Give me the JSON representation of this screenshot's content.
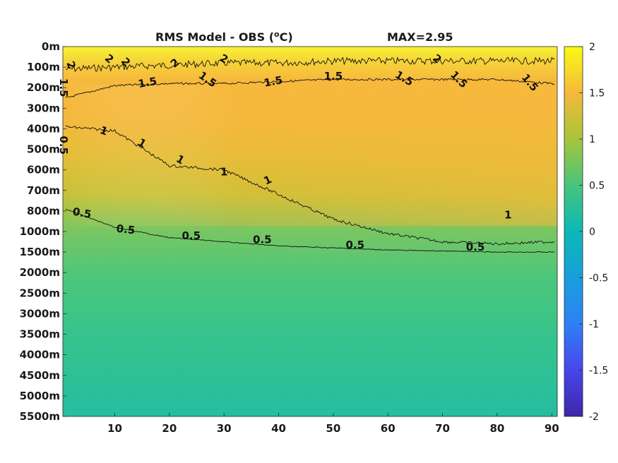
{
  "chart_data": {
    "type": "heatmap",
    "title_main": "RMS Model - OBS (",
    "title_sup": "o",
    "title_end": "C)",
    "max_label": "MAX=2.95",
    "x_ticks": [
      "10",
      "20",
      "30",
      "40",
      "50",
      "60",
      "70",
      "80",
      "90"
    ],
    "x_tick_values": [
      10,
      20,
      30,
      40,
      50,
      60,
      70,
      80,
      90
    ],
    "xlim": [
      0.5,
      91
    ],
    "y_ticks": [
      "0m",
      "100m",
      "200m",
      "300m",
      "400m",
      "500m",
      "600m",
      "700m",
      "800m",
      "1000m",
      "1500m",
      "2000m",
      "2500m",
      "3000m",
      "3500m",
      "4000m",
      "4500m",
      "5000m",
      "5500m"
    ],
    "colorbar_ticks": [
      "2",
      "1.5",
      "1",
      "0.5",
      "0",
      "-0.5",
      "-1",
      "-1.5",
      "-2"
    ],
    "colorbar_values": [
      2,
      1.5,
      1,
      0.5,
      0,
      -0.5,
      -1,
      -1.5,
      -2
    ],
    "clim": [
      -2,
      2
    ],
    "colormap": "parula",
    "contour_levels": [
      0.5,
      1,
      1.5,
      2
    ],
    "contours": [
      {
        "level": 2,
        "depth_index": [
          1.1,
          1.0,
          0.9,
          0.8,
          0.8,
          0.7,
          0.7,
          0.7,
          0.7,
          0.7
        ]
      },
      {
        "level": 1.5,
        "depth_index": [
          2.5,
          1.9,
          1.8,
          1.8,
          1.7,
          1.6,
          1.6,
          1.6,
          1.6,
          1.8
        ]
      },
      {
        "level": 1,
        "depth_index": [
          3.9,
          4.1,
          5.8,
          6.0,
          7.2,
          8.4,
          9.1,
          9.5,
          9.6,
          9.5
        ]
      },
      {
        "level": 0.5,
        "depth_index": [
          7.9,
          8.8,
          9.3,
          9.5,
          9.7,
          9.8,
          9.9,
          9.95,
          10.0,
          10.0
        ]
      }
    ],
    "contour_x": [
      1,
      10,
      20,
      30,
      40,
      50,
      60,
      70,
      80,
      90
    ],
    "contour_labels": [
      {
        "text": "0.5",
        "x": 4,
        "d": 8.1,
        "rot": 10
      },
      {
        "text": "0.5",
        "x": 12,
        "d": 8.9,
        "rot": 6
      },
      {
        "text": "0.5",
        "x": 24,
        "d": 9.2,
        "rot": 0
      },
      {
        "text": "0.5",
        "x": 37,
        "d": 9.4,
        "rot": 0
      },
      {
        "text": "0.5",
        "x": 54,
        "d": 9.65,
        "rot": 0
      },
      {
        "text": "0.5",
        "x": 76,
        "d": 9.75,
        "rot": 0
      },
      {
        "text": "1",
        "x": 8,
        "d": 4.1,
        "rot": 20
      },
      {
        "text": "1",
        "x": 15,
        "d": 4.7,
        "rot": 30
      },
      {
        "text": "1",
        "x": 22,
        "d": 5.5,
        "rot": 30
      },
      {
        "text": "1",
        "x": 30,
        "d": 6.1,
        "rot": 0
      },
      {
        "text": "1",
        "x": 38,
        "d": 6.5,
        "rot": -25
      },
      {
        "text": "1",
        "x": 82,
        "d": 8.2,
        "rot": 0
      },
      {
        "text": "1.5",
        "x": 16,
        "d": 1.75,
        "rot": -10
      },
      {
        "text": "1.5",
        "x": 27,
        "d": 1.6,
        "rot": 35
      },
      {
        "text": "1.5",
        "x": 39,
        "d": 1.7,
        "rot": -10
      },
      {
        "text": "1.5",
        "x": 50,
        "d": 1.45,
        "rot": 0
      },
      {
        "text": "1.5",
        "x": 63,
        "d": 1.55,
        "rot": 30
      },
      {
        "text": "1.5",
        "x": 73,
        "d": 1.6,
        "rot": 45
      },
      {
        "text": "1.5",
        "x": 86,
        "d": 1.75,
        "rot": 50
      },
      {
        "text": "2",
        "x": 2,
        "d": 0.9,
        "rot": 70
      },
      {
        "text": "2",
        "x": 9,
        "d": 0.6,
        "rot": 40
      },
      {
        "text": "2",
        "x": 12,
        "d": 0.75,
        "rot": 50
      },
      {
        "text": "2",
        "x": 21,
        "d": 0.8,
        "rot": -40
      },
      {
        "text": "2",
        "x": 30,
        "d": 0.6,
        "rot": 30
      },
      {
        "text": "2",
        "x": 69,
        "d": 0.6,
        "rot": 40
      },
      {
        "text": "1.5",
        "x": 0.6,
        "d": 2.0,
        "rot": 90
      },
      {
        "text": "0.5",
        "x": 0.6,
        "d": 4.8,
        "rot": 90
      }
    ]
  }
}
